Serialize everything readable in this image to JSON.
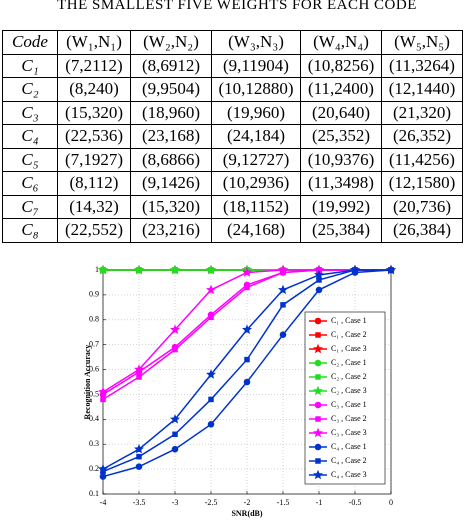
{
  "table": {
    "caption": "THE SMALLEST FIVE WEIGHTS FOR EACH CODE",
    "header": [
      "Code",
      "(W₁,N₁)",
      "(W₂,N₂)",
      "(W₃,N₃)",
      "(W₄,N₄)",
      "(W₅,N₅)"
    ],
    "rows": [
      [
        "C₁",
        "(7,2112)",
        "(8,6912)",
        "(9,11904)",
        "(10,8256)",
        "(11,3264)"
      ],
      [
        "C₂",
        "(8,240)",
        "(9,9504)",
        "(10,12880)",
        "(11,2400)",
        "(12,1440)"
      ],
      [
        "C₃",
        "(15,320)",
        "(18,960)",
        "(19,960)",
        "(20,640)",
        "(21,320)"
      ],
      [
        "C₄",
        "(22,536)",
        "(23,168)",
        "(24,184)",
        "(25,352)",
        "(26,352)"
      ],
      [
        "C₅",
        "(7,1927)",
        "(8,6866)",
        "(9,12727)",
        "(10,9376)",
        "(11,4256)"
      ],
      [
        "C₆",
        "(8,112)",
        "(9,1426)",
        "(10,2936)",
        "(11,3498)",
        "(12,1580)"
      ],
      [
        "C₇",
        "(14,32)",
        "(15,320)",
        "(18,1152)",
        "(19,992)",
        "(20,736)"
      ],
      [
        "C₈",
        "(22,552)",
        "(23,216)",
        "(24,168)",
        "(25,384)",
        "(26,384)"
      ]
    ]
  },
  "chart_data": {
    "type": "line",
    "x_label": "SNR(dB)",
    "y_label": "Recognition Accuracy",
    "x": [
      -4,
      -3.5,
      -3,
      -2.5,
      -2,
      -1.5,
      -1,
      -0.5,
      0
    ],
    "xlim": [
      -4,
      0
    ],
    "xticks": [
      -4,
      -3.5,
      -3,
      -2.5,
      -2,
      -1.5,
      -1,
      -0.5,
      0
    ],
    "ylim": [
      0.1,
      1
    ],
    "yticks": [
      0.1,
      0.2,
      0.3,
      0.4,
      0.5,
      0.6,
      0.7,
      0.8,
      0.9,
      1
    ],
    "grid": true,
    "legend": "right",
    "series": [
      {
        "name": "C₁ , Case 1",
        "color": "#ff0000",
        "marker": "circle",
        "values": [
          1,
          1,
          1,
          1,
          1,
          1,
          1,
          1,
          1
        ]
      },
      {
        "name": "C₁ , Case 2",
        "color": "#ff0000",
        "marker": "square",
        "values": [
          1,
          1,
          1,
          1,
          1,
          1,
          1,
          1,
          1
        ]
      },
      {
        "name": "C₁ , Case 3",
        "color": "#ff0000",
        "marker": "star",
        "values": [
          1,
          1,
          1,
          1,
          1,
          1,
          1,
          1,
          1
        ]
      },
      {
        "name": "C₂ , Case 1",
        "color": "#22dd22",
        "marker": "circle",
        "values": [
          1,
          1,
          1,
          1,
          1,
          1,
          1,
          1,
          1
        ]
      },
      {
        "name": "C₂ , Case 2",
        "color": "#22dd22",
        "marker": "square",
        "values": [
          1,
          1,
          1,
          1,
          1,
          1,
          1,
          1,
          1
        ]
      },
      {
        "name": "C₂ , Case 3",
        "color": "#22dd22",
        "marker": "star",
        "values": [
          1,
          1,
          1,
          1,
          1,
          1,
          1,
          1,
          1
        ]
      },
      {
        "name": "C₃ , Case 1",
        "color": "#ff00ff",
        "marker": "circle",
        "values": [
          0.5,
          0.59,
          0.69,
          0.82,
          0.94,
          0.99,
          1,
          1,
          1
        ]
      },
      {
        "name": "C₃ , Case 2",
        "color": "#ff00ff",
        "marker": "square",
        "values": [
          0.48,
          0.57,
          0.68,
          0.81,
          0.93,
          0.99,
          1,
          1,
          1
        ]
      },
      {
        "name": "C₃ , Case 3",
        "color": "#ff00ff",
        "marker": "star",
        "values": [
          0.51,
          0.6,
          0.76,
          0.92,
          0.99,
          1,
          1,
          1,
          1
        ]
      },
      {
        "name": "C₄ , Case 1",
        "color": "#0033cc",
        "marker": "circle",
        "values": [
          0.17,
          0.21,
          0.28,
          0.38,
          0.55,
          0.74,
          0.92,
          0.99,
          1
        ]
      },
      {
        "name": "C₄ , Case 2",
        "color": "#0033cc",
        "marker": "square",
        "values": [
          0.19,
          0.25,
          0.34,
          0.48,
          0.64,
          0.86,
          0.96,
          1,
          1
        ]
      },
      {
        "name": "C₄ , Case 3",
        "color": "#0033cc",
        "marker": "star",
        "values": [
          0.2,
          0.28,
          0.4,
          0.58,
          0.76,
          0.92,
          0.98,
          1,
          1
        ]
      }
    ]
  }
}
